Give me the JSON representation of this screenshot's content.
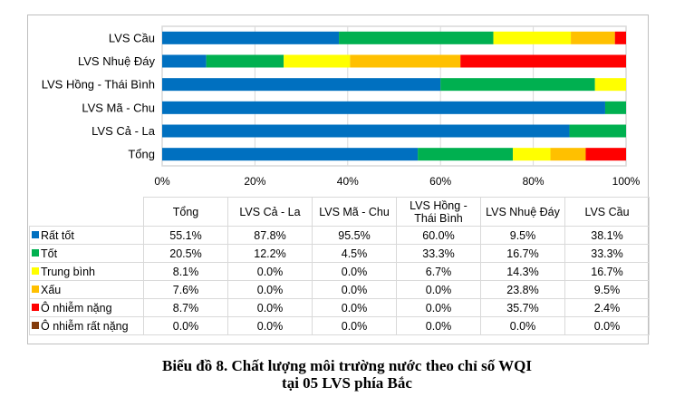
{
  "chart_data": {
    "type": "bar",
    "orientation": "horizontal",
    "stacked": "percent",
    "title": "Biểu đồ 8. Chất lượng môi trường nước theo chỉ số WQI",
    "subtitle": "tại 05 LVS phía Bắc",
    "xlabel": "",
    "ylabel": "",
    "xlim": [
      0,
      100
    ],
    "x_ticks": [
      "0%",
      "20%",
      "40%",
      "60%",
      "80%",
      "100%"
    ],
    "grid": true,
    "categories": [
      "Tổng",
      "LVS Cả - La",
      "LVS Mã - Chu",
      "LVS Hồng - Thái Bình",
      "LVS Nhuệ Đáy",
      "LVS Cầu"
    ],
    "category_labels_axis": [
      "LVS Cầu",
      "LVS Nhuệ Đáy",
      "LVS Hồng - Thái Bình",
      "LVS Mã - Chu",
      "LVS Cả - La",
      "Tổng"
    ],
    "table_headers": [
      "Tổng",
      "LVS Cả - La",
      "LVS Mã - Chu",
      "LVS Hồng -",
      "Thái Bình",
      "LVS Nhuệ Đáy",
      "LVS Cầu"
    ],
    "legend_position": "data-table",
    "series": [
      {
        "name": "Rất tốt",
        "color": "#0070c0",
        "values": [
          55.1,
          87.8,
          95.5,
          60.0,
          9.5,
          38.1
        ],
        "labels": [
          "55.1%",
          "87.8%",
          "95.5%",
          "60.0%",
          "9.5%",
          "38.1%"
        ]
      },
      {
        "name": "Tốt",
        "color": "#00b050",
        "values": [
          20.5,
          12.2,
          4.5,
          33.3,
          16.7,
          33.3
        ],
        "labels": [
          "20.5%",
          "12.2%",
          "4.5%",
          "33.3%",
          "16.7%",
          "33.3%"
        ]
      },
      {
        "name": "Trung bình",
        "color": "#ffff00",
        "values": [
          8.1,
          0.0,
          0.0,
          6.7,
          14.3,
          16.7
        ],
        "labels": [
          "8.1%",
          "0.0%",
          "0.0%",
          "6.7%",
          "14.3%",
          "16.7%"
        ]
      },
      {
        "name": "Xấu",
        "color": "#ffc000",
        "values": [
          7.6,
          0.0,
          0.0,
          0.0,
          23.8,
          9.5
        ],
        "labels": [
          "7.6%",
          "0.0%",
          "0.0%",
          "0.0%",
          "23.8%",
          "9.5%"
        ]
      },
      {
        "name": "Ô nhiễm nặng",
        "color": "#ff0000",
        "values": [
          8.7,
          0.0,
          0.0,
          0.0,
          35.7,
          2.4
        ],
        "labels": [
          "8.7%",
          "0.0%",
          "0.0%",
          "0.0%",
          "35.7%",
          "2.4%"
        ]
      },
      {
        "name": "Ô nhiễm rất  nặng",
        "color": "#843c0c",
        "values": [
          0.0,
          0.0,
          0.0,
          0.0,
          0.0,
          0.0
        ],
        "labels": [
          "0.0%",
          "0.0%",
          "0.0%",
          "0.0%",
          "0.0%",
          "0.0%"
        ]
      }
    ]
  },
  "caption": {
    "line1": "Biểu đồ 8. Chất lượng môi trường nước theo chỉ số WQI",
    "line2": "tại 05 LVS phía Bắc"
  }
}
